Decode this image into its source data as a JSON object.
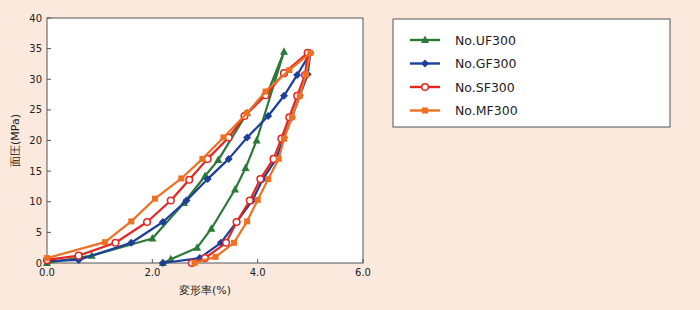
{
  "chart_data": {
    "type": "line",
    "x_label": "変形率(%)",
    "y_label": "面圧(MPa)",
    "xlim": [
      0,
      6
    ],
    "ylim": [
      0,
      40
    ],
    "xticks": [
      {
        "value": 0,
        "label": "0.0"
      },
      {
        "value": 2,
        "label": "2.0"
      },
      {
        "value": 4,
        "label": "4.0"
      },
      {
        "value": 6,
        "label": "6.0"
      }
    ],
    "yticks": [
      0,
      5,
      10,
      15,
      20,
      25,
      30,
      35,
      40
    ],
    "grid": false,
    "legend": "right",
    "series": [
      {
        "name": "No.UF300",
        "color": "#2b7a37",
        "marker": "triangle",
        "x": [
          0,
          0.85,
          2.0,
          2.6,
          3.0,
          3.25,
          3.8,
          4.2,
          4.5,
          3.98,
          3.77,
          3.57,
          3.12,
          2.85,
          2.35,
          2.2
        ],
        "values": [
          0,
          1.2,
          4,
          9.8,
          14.2,
          16.8,
          24.5,
          28,
          34.5,
          20,
          15.5,
          12,
          5.6,
          2.5,
          0.6,
          0
        ]
      },
      {
        "name": "No.GF300",
        "color": "#1c3f9c",
        "marker": "diamond",
        "x": [
          0,
          0.6,
          1.6,
          2.2,
          2.65,
          3.05,
          3.45,
          3.8,
          4.2,
          4.5,
          4.75,
          5.0,
          4.95,
          4.8,
          4.65,
          4.5,
          4.35,
          4.1,
          3.9,
          3.6,
          3.3,
          2.9,
          2.2
        ],
        "values": [
          0.3,
          0.5,
          3.3,
          6.7,
          10.2,
          13.7,
          17,
          20.5,
          24,
          27.3,
          30.7,
          34.3,
          30.8,
          27.3,
          23.8,
          20.5,
          17,
          13.7,
          10.2,
          6.7,
          3.3,
          0.8,
          0
        ]
      },
      {
        "name": "No.SF300",
        "color": "#e6251f",
        "marker": "open-circle",
        "x": [
          0,
          0.6,
          1.3,
          1.9,
          2.35,
          2.7,
          3.05,
          3.45,
          3.75,
          4.15,
          4.5,
          4.95,
          4.9,
          4.75,
          4.6,
          4.45,
          4.3,
          4.05,
          3.85,
          3.6,
          3.4,
          3.0,
          2.75
        ],
        "values": [
          0.5,
          1.2,
          3.3,
          6.7,
          10.2,
          13.6,
          17,
          20.5,
          24,
          27.4,
          31,
          34.3,
          30.7,
          27.3,
          23.8,
          20.3,
          17,
          13.7,
          10.2,
          6.7,
          3.3,
          0.8,
          0
        ]
      },
      {
        "name": "No.MF300",
        "color": "#f07022",
        "marker": "square",
        "x": [
          0,
          1.1,
          1.6,
          2.05,
          2.55,
          2.95,
          3.35,
          3.8,
          4.15,
          4.6,
          5.0,
          4.92,
          4.8,
          4.65,
          4.5,
          4.4,
          4.2,
          4.0,
          3.8,
          3.55,
          3.2,
          2.8
        ],
        "values": [
          0.8,
          3.4,
          6.8,
          10.5,
          13.8,
          17,
          20.5,
          24.5,
          28,
          31.5,
          34.3,
          30.8,
          27.3,
          23.8,
          20.3,
          17,
          13.7,
          10.3,
          6.8,
          3.3,
          1,
          0
        ]
      }
    ]
  }
}
